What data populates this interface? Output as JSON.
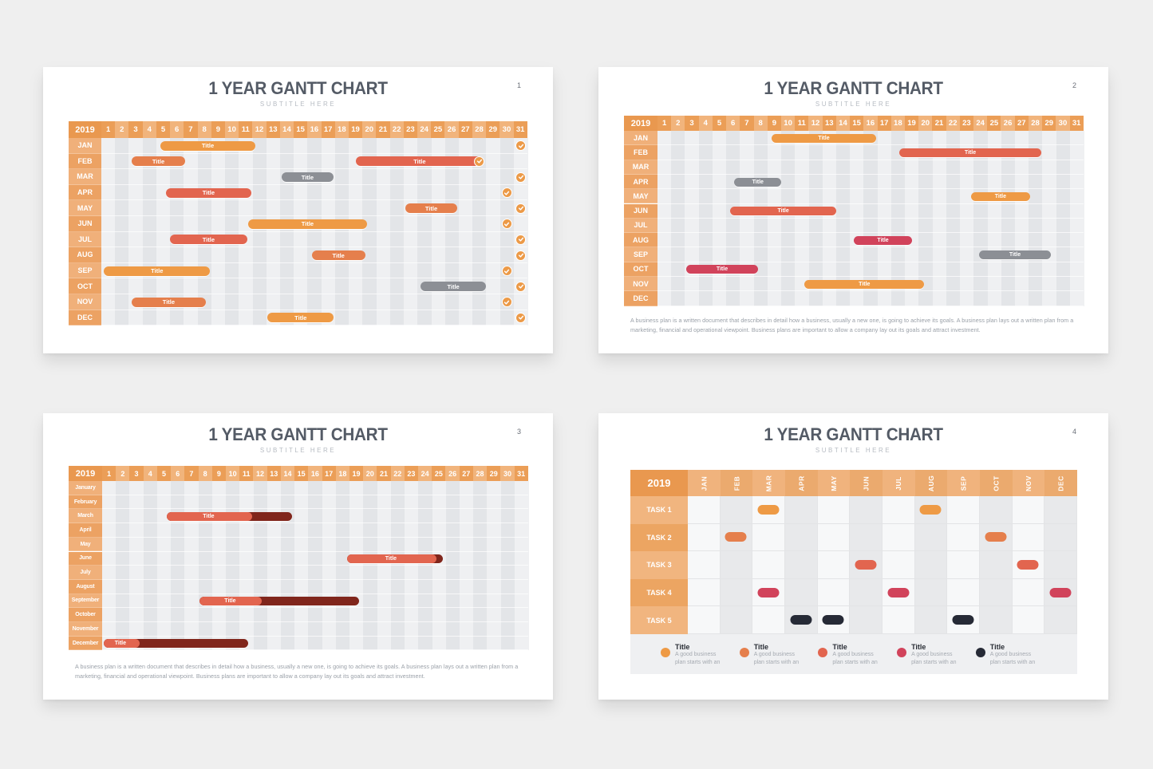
{
  "colors": {
    "orange": "#ee9a45",
    "dark_orange": "#e57f4c",
    "coral": "#e2654f",
    "crimson": "#d1435b",
    "gray": "#8c8f95",
    "navy": "#262a36",
    "progress_dark": "#80261c",
    "check": "#ec9a48"
  },
  "slides": [
    {
      "title": "1 YEAR GANTT CHART",
      "subtitle": "SUBTITLE HERE",
      "number": "1",
      "year": "2019"
    },
    {
      "title": "1 YEAR GANTT CHART",
      "subtitle": "SUBTITLE HERE",
      "number": "2",
      "year": "2019",
      "description": "A business plan is a written document that describes in detail how a business, usually a new one, is going to achieve its goals. A business plan lays out a written plan from a marketing, financial and operational viewpoint. Business plans are important to allow a company lay out its goals and attract investment."
    },
    {
      "title": "1 YEAR GANTT CHART",
      "subtitle": "SUBTITLE HERE",
      "number": "3",
      "year": "2019",
      "description": "A business plan is a written document that describes in detail how a business, usually a new one, is going to achieve its goals. A business plan lays out a written plan from a marketing, financial and operational viewpoint. Business plans are important to allow a company lay out its goals and attract investment."
    },
    {
      "title": "1 YEAR GANTT CHART",
      "subtitle": "SUBTITLE HERE",
      "number": "4",
      "year": "2019"
    }
  ],
  "chart_data": [
    {
      "type": "gantt",
      "title": "1 YEAR GANTT CHART",
      "subtitle": "SUBTITLE HERE",
      "year": "2019",
      "x_axis": {
        "label": "Day",
        "ticks": [
          1,
          2,
          3,
          4,
          5,
          6,
          7,
          8,
          9,
          10,
          11,
          12,
          13,
          14,
          15,
          16,
          17,
          18,
          19,
          20,
          21,
          22,
          23,
          24,
          25,
          26,
          27,
          28,
          29,
          30,
          31
        ]
      },
      "rows": [
        "JAN",
        "FEB",
        "MAR",
        "APR",
        "MAY",
        "JUN",
        "JUL",
        "AUG",
        "SEP",
        "OCT",
        "NOV",
        "DEC"
      ],
      "bars": [
        {
          "row": 0,
          "start": 4.8,
          "end": 11.7,
          "label": "Title",
          "color": "orange"
        },
        {
          "row": 1,
          "start": 2.7,
          "end": 6.6,
          "label": "Title",
          "color": "dark_orange"
        },
        {
          "row": 1,
          "start": 19.0,
          "end": 28.3,
          "label": "Title",
          "color": "coral"
        },
        {
          "row": 2,
          "start": 13.6,
          "end": 17.4,
          "label": "Title",
          "color": "gray"
        },
        {
          "row": 3,
          "start": 5.2,
          "end": 11.4,
          "label": "Title",
          "color": "coral"
        },
        {
          "row": 4,
          "start": 22.6,
          "end": 26.4,
          "label": "Title",
          "color": "dark_orange"
        },
        {
          "row": 5,
          "start": 11.2,
          "end": 19.8,
          "label": "Title",
          "color": "orange"
        },
        {
          "row": 6,
          "start": 5.5,
          "end": 11.1,
          "label": "Title",
          "color": "coral"
        },
        {
          "row": 7,
          "start": 15.8,
          "end": 19.7,
          "label": "Title",
          "color": "dark_orange"
        },
        {
          "row": 8,
          "start": 0.7,
          "end": 8.4,
          "label": "Title",
          "color": "orange"
        },
        {
          "row": 9,
          "start": 23.7,
          "end": 28.5,
          "label": "Title",
          "color": "gray"
        },
        {
          "row": 10,
          "start": 2.7,
          "end": 8.1,
          "label": "Title",
          "color": "dark_orange"
        },
        {
          "row": 11,
          "start": 12.6,
          "end": 17.4,
          "label": "Title",
          "color": "orange"
        }
      ],
      "checks": [
        {
          "row": 0,
          "day": 31
        },
        {
          "row": 1,
          "day": 28
        },
        {
          "row": 2,
          "day": 31
        },
        {
          "row": 3,
          "day": 30
        },
        {
          "row": 4,
          "day": 31
        },
        {
          "row": 5,
          "day": 30
        },
        {
          "row": 6,
          "day": 31
        },
        {
          "row": 7,
          "day": 31
        },
        {
          "row": 8,
          "day": 30
        },
        {
          "row": 9,
          "day": 31
        },
        {
          "row": 10,
          "day": 30
        },
        {
          "row": 11,
          "day": 31
        }
      ]
    },
    {
      "type": "gantt",
      "title": "1 YEAR GANTT CHART",
      "subtitle": "SUBTITLE HERE",
      "year": "2019",
      "x_axis": {
        "label": "Day",
        "ticks": [
          1,
          2,
          3,
          4,
          5,
          6,
          7,
          8,
          9,
          10,
          11,
          12,
          13,
          14,
          15,
          16,
          17,
          18,
          19,
          20,
          21,
          22,
          23,
          24,
          25,
          26,
          27,
          28,
          29,
          30,
          31
        ]
      },
      "rows": [
        "JAN",
        "FEB",
        "MAR",
        "APR",
        "MAY",
        "JUN",
        "JUL",
        "AUG",
        "SEP",
        "OCT",
        "NOV",
        "DEC"
      ],
      "bars": [
        {
          "row": 0,
          "start": 8.8,
          "end": 16.4,
          "label": "Title",
          "color": "orange"
        },
        {
          "row": 1,
          "start": 18.1,
          "end": 28.4,
          "label": "Title",
          "color": "coral"
        },
        {
          "row": 3,
          "start": 6.1,
          "end": 9.5,
          "label": "Title",
          "color": "gray"
        },
        {
          "row": 4,
          "start": 23.3,
          "end": 27.6,
          "label": "Title",
          "color": "orange"
        },
        {
          "row": 5,
          "start": 5.8,
          "end": 13.5,
          "label": "Title",
          "color": "coral"
        },
        {
          "row": 7,
          "start": 14.8,
          "end": 19.0,
          "label": "Title",
          "color": "crimson"
        },
        {
          "row": 8,
          "start": 23.9,
          "end": 29.1,
          "label": "Title",
          "color": "gray"
        },
        {
          "row": 9,
          "start": 2.6,
          "end": 7.8,
          "label": "Title",
          "color": "crimson"
        },
        {
          "row": 10,
          "start": 11.2,
          "end": 19.9,
          "label": "Title",
          "color": "orange"
        }
      ]
    },
    {
      "type": "gantt",
      "title": "1 YEAR GANTT CHART",
      "subtitle": "SUBTITLE HERE",
      "year": "2019",
      "x_axis": {
        "label": "Day",
        "ticks": [
          1,
          2,
          3,
          4,
          5,
          6,
          7,
          8,
          9,
          10,
          11,
          12,
          13,
          14,
          15,
          16,
          17,
          18,
          19,
          20,
          21,
          22,
          23,
          24,
          25,
          26,
          27,
          28,
          29,
          30,
          31
        ]
      },
      "rows": [
        "January",
        "February",
        "March",
        "April",
        "May",
        "June",
        "July",
        "August",
        "September",
        "October",
        "November",
        "December"
      ],
      "bars": [
        {
          "row": 2,
          "start": 5.2,
          "end": 14.3,
          "label": "Title",
          "progress": 0.68,
          "color": "coral"
        },
        {
          "row": 5,
          "start": 18.3,
          "end": 25.3,
          "label": "Title",
          "progress": 0.93,
          "color": "coral"
        },
        {
          "row": 8,
          "start": 7.6,
          "end": 19.2,
          "label": "Title",
          "progress": 0.39,
          "color": "coral"
        },
        {
          "row": 11,
          "start": 0.6,
          "end": 11.1,
          "label": "Title",
          "progress": 0.25,
          "color": "coral"
        }
      ]
    },
    {
      "type": "gantt",
      "title": "1 YEAR GANTT CHART",
      "subtitle": "SUBTITLE HERE",
      "year": "2019",
      "columns": [
        "JAN",
        "FEB",
        "MAR",
        "APR",
        "MAY",
        "JUN",
        "JUL",
        "AUG",
        "SEP",
        "OCT",
        "NOV",
        "DEC"
      ],
      "rows": [
        "TASK 1",
        "TASK 2",
        "TASK 3",
        "TASK 4",
        "TASK 5"
      ],
      "markers": [
        {
          "row": 0,
          "months": [
            2,
            7
          ],
          "color": "orange"
        },
        {
          "row": 1,
          "months": [
            1,
            9
          ],
          "color": "dark_orange"
        },
        {
          "row": 2,
          "months": [
            5,
            10
          ],
          "color": "coral"
        },
        {
          "row": 3,
          "months": [
            2,
            6,
            11
          ],
          "color": "crimson"
        },
        {
          "row": 4,
          "months": [
            3,
            4,
            8
          ],
          "color": "navy"
        }
      ],
      "legend": [
        {
          "title": "Title",
          "text": "A good business plan starts with an",
          "color": "orange"
        },
        {
          "title": "Title",
          "text": "A good business plan starts with an",
          "color": "dark_orange"
        },
        {
          "title": "Title",
          "text": "A good business plan starts with an",
          "color": "coral"
        },
        {
          "title": "Title",
          "text": "A good business plan starts with an",
          "color": "crimson"
        },
        {
          "title": "Title",
          "text": "A good business plan starts with an",
          "color": "navy"
        }
      ]
    }
  ]
}
